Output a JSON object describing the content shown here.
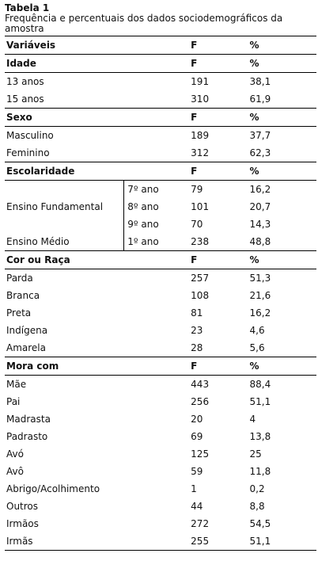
{
  "caption": {
    "title": "Tabela 1",
    "description": "Frequência e percentuais dos dados sociodemográficos da amostra"
  },
  "header": {
    "variable": "Variáveis",
    "f": "F",
    "pct": "%"
  },
  "idade": {
    "label": "Idade",
    "f": "F",
    "pct": "%",
    "rows": [
      {
        "label": "13 anos",
        "f": "191",
        "pct": "38,1"
      },
      {
        "label": "15 anos",
        "f": "310",
        "pct": "61,9"
      }
    ]
  },
  "sexo": {
    "label": "Sexo",
    "f": "F",
    "pct": "%",
    "rows": [
      {
        "label": "Masculino",
        "f": "189",
        "pct": "37,7"
      },
      {
        "label": "Feminino",
        "f": "312",
        "pct": "62,3"
      }
    ]
  },
  "escolaridade": {
    "label": "Escolaridade",
    "f": "F",
    "pct": "%",
    "fundamental_label": "Ensino  Fundamental",
    "medio_label": "Ensino  Médio",
    "rows": [
      {
        "sub": "7º ano",
        "f": "79",
        "pct": "16,2"
      },
      {
        "sub": "8º ano",
        "f": "101",
        "pct": "20,7"
      },
      {
        "sub": "9º ano",
        "f": "70",
        "pct": "14,3"
      },
      {
        "sub": "1º ano",
        "f": "238",
        "pct": "48,8"
      }
    ]
  },
  "raca": {
    "label": "Cor ou Raça",
    "f": "F",
    "pct": "%",
    "rows": [
      {
        "label": "Parda",
        "f": "257",
        "pct": "51,3"
      },
      {
        "label": "Branca",
        "f": "108",
        "pct": "21,6"
      },
      {
        "label": "Preta",
        "f": "81",
        "pct": "16,2"
      },
      {
        "label": "Indígena",
        "f": "23",
        "pct": "4,6"
      },
      {
        "label": "Amarela",
        "f": "28",
        "pct": "5,6"
      }
    ]
  },
  "mora": {
    "label": "Mora com",
    "f": "F",
    "pct": "%",
    "rows": [
      {
        "label": "Mãe",
        "f": "443",
        "pct": "88,4"
      },
      {
        "label": "Pai",
        "f": "256",
        "pct": "51,1"
      },
      {
        "label": "Madrasta",
        "f": "20",
        "pct": "4"
      },
      {
        "label": "Padrasto",
        "f": "69",
        "pct": "13,8"
      },
      {
        "label": "Avó",
        "f": "125",
        "pct": "25"
      },
      {
        "label": "Avô",
        "f": "59",
        "pct": "11,8"
      },
      {
        "label": "Abrigo/Acolhimento",
        "f": "1",
        "pct": "0,2"
      },
      {
        "label": "Outros",
        "f": "44",
        "pct": "8,8"
      },
      {
        "label": "Irmãos",
        "f": "272",
        "pct": "54,5"
      },
      {
        "label": "Irmãs",
        "f": "255",
        "pct": "51,1"
      }
    ]
  }
}
